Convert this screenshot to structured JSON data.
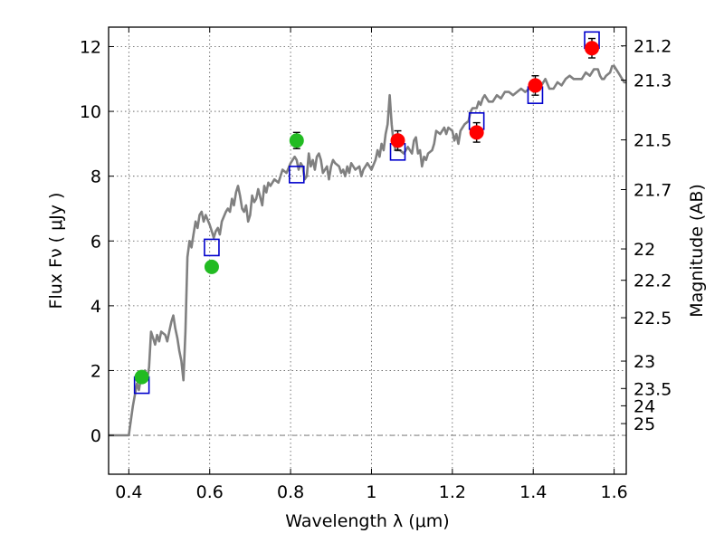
{
  "chart_data": {
    "type": "scatter",
    "xlabel": "Wavelength  λ (μm)",
    "ylabel": "Flux  Fν  ( μJy )",
    "y2label": "Magnitude (AB)",
    "xlim": [
      0.35,
      1.63
    ],
    "ylim": [
      -1.2,
      12.6
    ],
    "grid": true,
    "x_ticks": [
      0.4,
      0.6,
      0.8,
      1,
      1.2,
      1.4,
      1.6
    ],
    "x_tick_labels": [
      "0.4",
      "0.6",
      "0.8",
      "1",
      "1.2",
      "1.4",
      "1.6"
    ],
    "y_ticks": [
      0,
      2,
      4,
      6,
      8,
      10,
      12
    ],
    "y_tick_labels": [
      "0",
      "2",
      "4",
      "6",
      "8",
      "10",
      "12"
    ],
    "y2_ticks": [
      {
        "label": "21.2",
        "mag": 21.2
      },
      {
        "label": "21.3",
        "mag": 21.3
      },
      {
        "label": "21.5",
        "mag": 21.5
      },
      {
        "label": "21.7",
        "mag": 21.7
      },
      {
        "label": "22",
        "mag": 22
      },
      {
        "label": "22.2",
        "mag": 22.2
      },
      {
        "label": "22.5",
        "mag": 22.5
      },
      {
        "label": "23",
        "mag": 23
      },
      {
        "label": "23.5",
        "mag": 23.5
      },
      {
        "label": "24",
        "mag": 24
      },
      {
        "label": "25",
        "mag": 25
      }
    ],
    "series": [
      {
        "kind": "line",
        "color": "#808080",
        "points": [
          [
            0.35,
            0.0
          ],
          [
            0.36,
            0.0
          ],
          [
            0.39,
            0.0
          ],
          [
            0.4,
            0.0
          ],
          [
            0.41,
            0.9
          ],
          [
            0.42,
            1.6
          ],
          [
            0.425,
            1.4
          ],
          [
            0.43,
            1.8
          ],
          [
            0.44,
            2.0
          ],
          [
            0.445,
            1.7
          ],
          [
            0.45,
            2.1
          ],
          [
            0.455,
            3.2
          ],
          [
            0.46,
            3.0
          ],
          [
            0.465,
            2.8
          ],
          [
            0.47,
            3.1
          ],
          [
            0.475,
            2.9
          ],
          [
            0.48,
            3.2
          ],
          [
            0.49,
            3.1
          ],
          [
            0.495,
            2.9
          ],
          [
            0.5,
            3.2
          ],
          [
            0.505,
            3.5
          ],
          [
            0.51,
            3.7
          ],
          [
            0.515,
            3.3
          ],
          [
            0.52,
            3.0
          ],
          [
            0.525,
            2.6
          ],
          [
            0.53,
            2.3
          ],
          [
            0.535,
            1.7
          ],
          [
            0.54,
            3.2
          ],
          [
            0.545,
            5.5
          ],
          [
            0.55,
            6.0
          ],
          [
            0.555,
            5.8
          ],
          [
            0.56,
            6.2
          ],
          [
            0.565,
            6.6
          ],
          [
            0.57,
            6.4
          ],
          [
            0.575,
            6.8
          ],
          [
            0.58,
            6.9
          ],
          [
            0.585,
            6.6
          ],
          [
            0.59,
            6.8
          ],
          [
            0.6,
            6.5
          ],
          [
            0.605,
            6.3
          ],
          [
            0.61,
            6.1
          ],
          [
            0.615,
            6.3
          ],
          [
            0.62,
            6.4
          ],
          [
            0.625,
            6.2
          ],
          [
            0.63,
            6.6
          ],
          [
            0.64,
            6.9
          ],
          [
            0.645,
            7.0
          ],
          [
            0.65,
            6.9
          ],
          [
            0.655,
            7.3
          ],
          [
            0.66,
            7.1
          ],
          [
            0.665,
            7.5
          ],
          [
            0.67,
            7.7
          ],
          [
            0.675,
            7.4
          ],
          [
            0.68,
            7.0
          ],
          [
            0.685,
            6.9
          ],
          [
            0.69,
            7.1
          ],
          [
            0.695,
            6.6
          ],
          [
            0.7,
            6.8
          ],
          [
            0.705,
            7.4
          ],
          [
            0.71,
            7.2
          ],
          [
            0.715,
            7.3
          ],
          [
            0.72,
            7.6
          ],
          [
            0.73,
            7.1
          ],
          [
            0.735,
            7.7
          ],
          [
            0.74,
            7.5
          ],
          [
            0.745,
            7.8
          ],
          [
            0.75,
            7.7
          ],
          [
            0.755,
            7.8
          ],
          [
            0.76,
            7.9
          ],
          [
            0.77,
            7.8
          ],
          [
            0.775,
            8.0
          ],
          [
            0.78,
            8.2
          ],
          [
            0.79,
            8.1
          ],
          [
            0.8,
            8.4
          ],
          [
            0.81,
            8.6
          ],
          [
            0.815,
            8.5
          ],
          [
            0.82,
            8.2
          ],
          [
            0.825,
            8.4
          ],
          [
            0.83,
            8.3
          ],
          [
            0.835,
            7.9
          ],
          [
            0.84,
            8.0
          ],
          [
            0.845,
            8.7
          ],
          [
            0.85,
            8.3
          ],
          [
            0.855,
            8.5
          ],
          [
            0.86,
            8.2
          ],
          [
            0.865,
            8.6
          ],
          [
            0.87,
            8.7
          ],
          [
            0.875,
            8.5
          ],
          [
            0.88,
            8.1
          ],
          [
            0.89,
            8.3
          ],
          [
            0.895,
            7.9
          ],
          [
            0.9,
            8.3
          ],
          [
            0.905,
            8.5
          ],
          [
            0.91,
            8.4
          ],
          [
            0.92,
            8.3
          ],
          [
            0.925,
            8.1
          ],
          [
            0.93,
            8.2
          ],
          [
            0.935,
            8.0
          ],
          [
            0.94,
            8.3
          ],
          [
            0.945,
            8.1
          ],
          [
            0.95,
            8.4
          ],
          [
            0.955,
            8.3
          ],
          [
            0.96,
            8.2
          ],
          [
            0.97,
            8.3
          ],
          [
            0.975,
            8.0
          ],
          [
            0.98,
            8.2
          ],
          [
            0.99,
            8.4
          ],
          [
            1.0,
            8.2
          ],
          [
            1.01,
            8.5
          ],
          [
            1.015,
            8.8
          ],
          [
            1.02,
            8.6
          ],
          [
            1.025,
            9.0
          ],
          [
            1.03,
            8.8
          ],
          [
            1.035,
            9.3
          ],
          [
            1.04,
            9.6
          ],
          [
            1.045,
            10.5
          ],
          [
            1.05,
            9.6
          ],
          [
            1.055,
            9.0
          ],
          [
            1.06,
            8.8
          ],
          [
            1.07,
            8.8
          ],
          [
            1.08,
            8.7
          ],
          [
            1.09,
            8.9
          ],
          [
            1.1,
            8.7
          ],
          [
            1.105,
            9.1
          ],
          [
            1.11,
            9.2
          ],
          [
            1.115,
            8.7
          ],
          [
            1.12,
            8.8
          ],
          [
            1.125,
            8.3
          ],
          [
            1.13,
            8.6
          ],
          [
            1.135,
            8.5
          ],
          [
            1.14,
            8.7
          ],
          [
            1.15,
            8.8
          ],
          [
            1.155,
            9.0
          ],
          [
            1.16,
            9.4
          ],
          [
            1.17,
            9.3
          ],
          [
            1.18,
            9.5
          ],
          [
            1.185,
            9.3
          ],
          [
            1.19,
            9.5
          ],
          [
            1.2,
            9.4
          ],
          [
            1.205,
            9.1
          ],
          [
            1.21,
            9.3
          ],
          [
            1.215,
            9.0
          ],
          [
            1.22,
            9.4
          ],
          [
            1.23,
            9.6
          ],
          [
            1.24,
            9.7
          ],
          [
            1.245,
            10.0
          ],
          [
            1.25,
            10.1
          ],
          [
            1.26,
            10.1
          ],
          [
            1.265,
            10.3
          ],
          [
            1.27,
            10.2
          ],
          [
            1.275,
            10.4
          ],
          [
            1.28,
            10.5
          ],
          [
            1.29,
            10.3
          ],
          [
            1.3,
            10.3
          ],
          [
            1.31,
            10.5
          ],
          [
            1.32,
            10.4
          ],
          [
            1.33,
            10.6
          ],
          [
            1.34,
            10.6
          ],
          [
            1.35,
            10.5
          ],
          [
            1.36,
            10.6
          ],
          [
            1.37,
            10.7
          ],
          [
            1.38,
            10.6
          ],
          [
            1.39,
            10.7
          ],
          [
            1.4,
            10.9
          ],
          [
            1.41,
            10.9
          ],
          [
            1.42,
            10.8
          ],
          [
            1.43,
            11.0
          ],
          [
            1.44,
            10.7
          ],
          [
            1.45,
            10.7
          ],
          [
            1.46,
            10.9
          ],
          [
            1.47,
            10.8
          ],
          [
            1.48,
            11.0
          ],
          [
            1.49,
            11.1
          ],
          [
            1.5,
            11.0
          ],
          [
            1.51,
            11.0
          ],
          [
            1.52,
            11.0
          ],
          [
            1.53,
            11.2
          ],
          [
            1.54,
            11.1
          ],
          [
            1.55,
            11.3
          ],
          [
            1.56,
            11.3
          ],
          [
            1.565,
            11.1
          ],
          [
            1.57,
            11.0
          ],
          [
            1.575,
            11.0
          ],
          [
            1.58,
            11.1
          ],
          [
            1.59,
            11.2
          ],
          [
            1.595,
            11.4
          ],
          [
            1.6,
            11.4
          ],
          [
            1.605,
            11.3
          ],
          [
            1.61,
            11.2
          ],
          [
            1.62,
            11.0
          ],
          [
            1.625,
            10.9
          ],
          [
            1.63,
            10.9
          ]
        ]
      },
      {
        "kind": "open-square",
        "color": "#0000cc",
        "points": [
          [
            0.432,
            1.55
          ],
          [
            0.605,
            5.8
          ],
          [
            0.815,
            8.05
          ],
          [
            1.065,
            8.75
          ],
          [
            1.26,
            9.7
          ],
          [
            1.405,
            10.5
          ],
          [
            1.545,
            12.2
          ]
        ]
      },
      {
        "kind": "filled-circle",
        "color": "#22bb22",
        "points": [
          {
            "x": 0.432,
            "y": 1.8,
            "err": 0.15
          },
          {
            "x": 0.605,
            "y": 5.2,
            "err": 0.15
          },
          {
            "x": 0.815,
            "y": 9.1,
            "err": 0.25
          }
        ]
      },
      {
        "kind": "filled-circle",
        "color": "#ff0000",
        "points": [
          {
            "x": 1.065,
            "y": 9.1,
            "err": 0.3
          },
          {
            "x": 1.26,
            "y": 9.35,
            "err": 0.3
          },
          {
            "x": 1.405,
            "y": 10.8,
            "err": 0.3
          },
          {
            "x": 1.545,
            "y": 11.95,
            "err": 0.3
          }
        ]
      }
    ],
    "zero_line": true
  }
}
